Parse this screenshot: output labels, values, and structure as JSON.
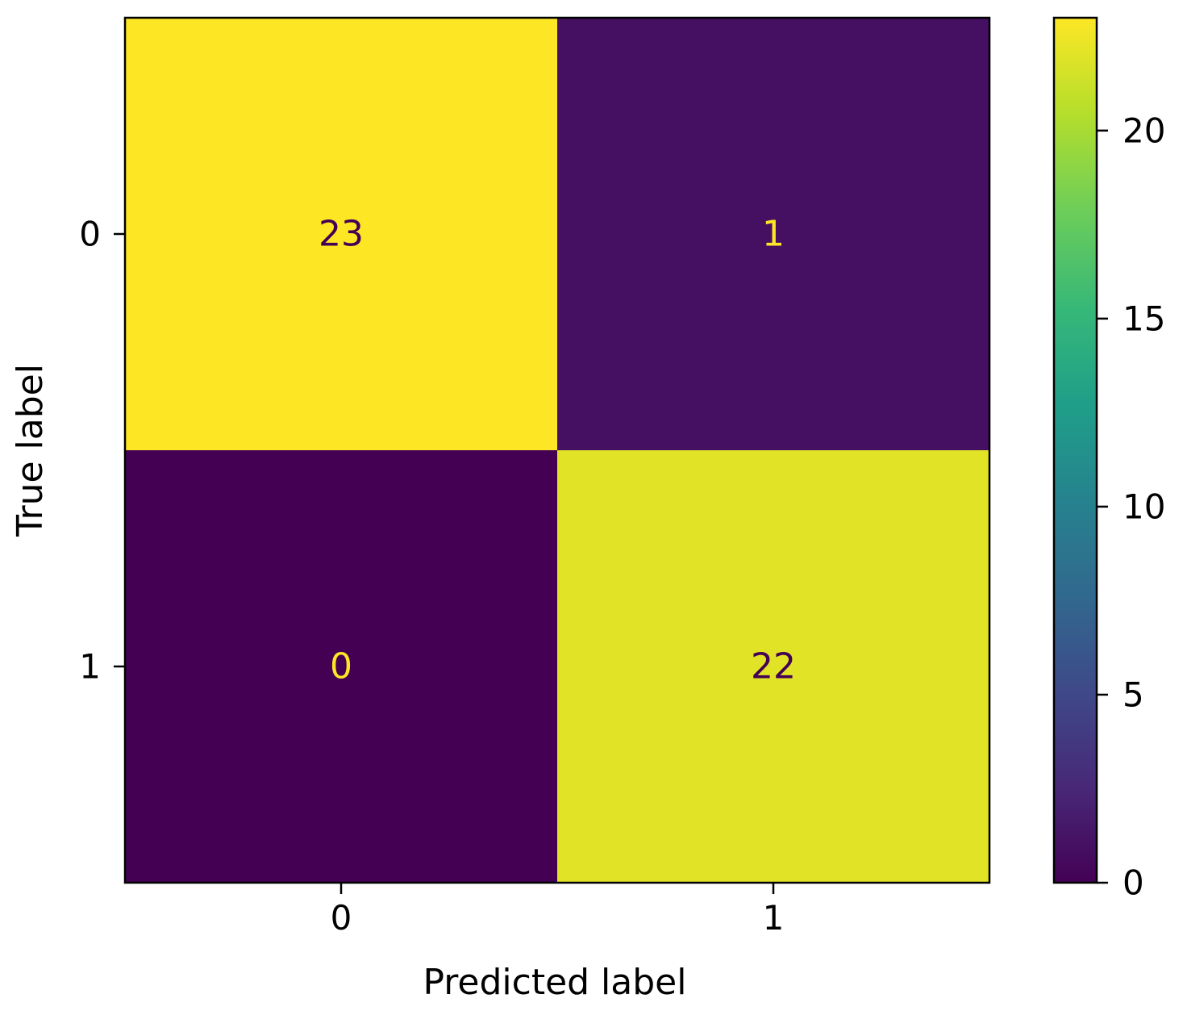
{
  "chart_data": {
    "type": "heatmap",
    "subtype": "confusion-matrix",
    "x_categories": [
      "0",
      "1"
    ],
    "y_categories": [
      "0",
      "1"
    ],
    "matrix": [
      [
        23,
        1
      ],
      [
        0,
        22
      ]
    ],
    "cell_labels": [
      [
        "23",
        "1"
      ],
      [
        "0",
        "22"
      ]
    ],
    "xlabel": "Predicted label",
    "ylabel": "True label",
    "colormap": "viridis",
    "colorbar": {
      "range": [
        0,
        23
      ],
      "ticks": [
        0,
        5,
        10,
        15,
        20
      ],
      "tick_labels": [
        "0",
        "5",
        "10",
        "15",
        "20"
      ]
    },
    "colors": {
      "low": "#440154",
      "high": "#fde725",
      "text_on_dark": "#fde725",
      "text_on_light": "#440154"
    }
  }
}
